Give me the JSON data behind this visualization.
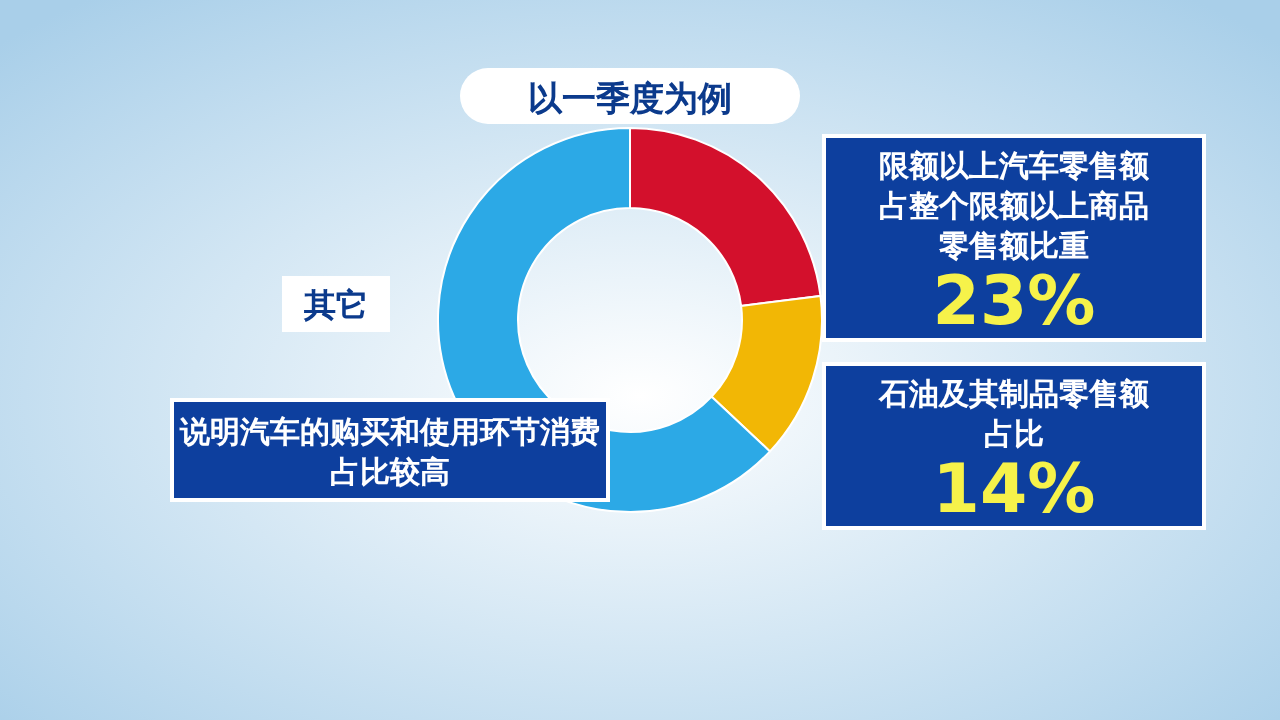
{
  "chart_data": {
    "type": "donut",
    "title": "以一季度为例",
    "categories": [
      "限额以上汽车零售额占整个限额以上商品零售额比重",
      "石油及其制品零售额占比",
      "其它"
    ],
    "values": [
      23,
      14,
      63
    ],
    "colors": [
      "#d3102c",
      "#f2b705",
      "#2ca9e6"
    ],
    "value_labels": [
      "23%",
      "14%",
      null
    ],
    "annotations": [
      "说明汽车的购买和使用环节消费占比较高"
    ],
    "legend": false
  }
}
